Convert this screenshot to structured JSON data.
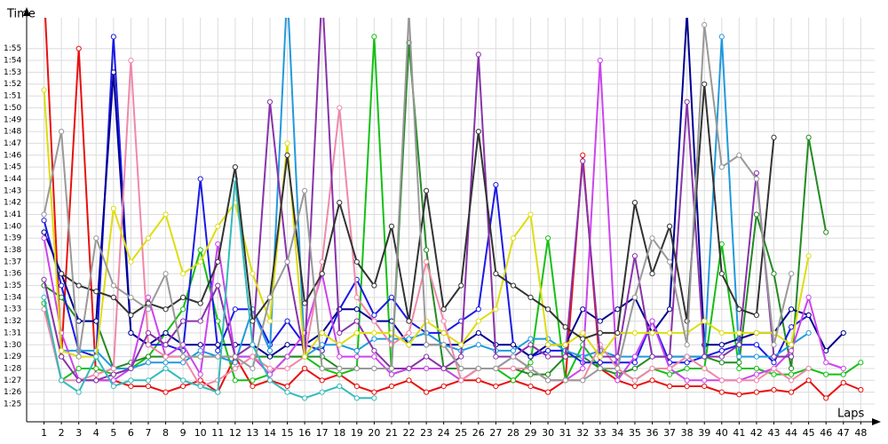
{
  "chart_data": {
    "type": "line",
    "xlabel": "Laps",
    "ylabel": "Time",
    "x": [
      1,
      2,
      3,
      4,
      5,
      6,
      7,
      8,
      9,
      10,
      11,
      12,
      13,
      14,
      15,
      16,
      17,
      18,
      19,
      20,
      21,
      22,
      23,
      24,
      25,
      26,
      27,
      28,
      29,
      30,
      31,
      32,
      33,
      34,
      35,
      36,
      37,
      38,
      39,
      40,
      41,
      42,
      43,
      44,
      45,
      46,
      47,
      48
    ],
    "xlim": [
      0,
      48.8
    ],
    "xticks": [
      1,
      2,
      3,
      4,
      5,
      6,
      7,
      8,
      9,
      10,
      11,
      12,
      13,
      14,
      15,
      16,
      17,
      18,
      19,
      20,
      21,
      22,
      23,
      24,
      25,
      26,
      27,
      28,
      29,
      30,
      31,
      32,
      33,
      34,
      35,
      36,
      37,
      38,
      39,
      40,
      41,
      42,
      43,
      44,
      45,
      46,
      47,
      48
    ],
    "ylim": [
      83.5,
      117.6
    ],
    "yticks": [
      {
        "value": 85,
        "label": "1:25"
      },
      {
        "value": 86,
        "label": "1:26"
      },
      {
        "value": 87,
        "label": "1:27"
      },
      {
        "value": 88,
        "label": "1:28"
      },
      {
        "value": 89,
        "label": "1:29"
      },
      {
        "value": 90,
        "label": "1:30"
      },
      {
        "value": 91,
        "label": "1:31"
      },
      {
        "value": 92,
        "label": "1:32"
      },
      {
        "value": 93,
        "label": "1:33"
      },
      {
        "value": 94,
        "label": "1:34"
      },
      {
        "value": 95,
        "label": "1:35"
      },
      {
        "value": 96,
        "label": "1:36"
      },
      {
        "value": 97,
        "label": "1:37"
      },
      {
        "value": 98,
        "label": "1:38"
      },
      {
        "value": 99,
        "label": "1:39"
      },
      {
        "value": 100,
        "label": "1:40"
      },
      {
        "value": 101,
        "label": "1:41"
      },
      {
        "value": 102,
        "label": "1:42"
      },
      {
        "value": 103,
        "label": "1:43"
      },
      {
        "value": 104,
        "label": "1:44"
      },
      {
        "value": 105,
        "label": "1:45"
      },
      {
        "value": 106,
        "label": "1:46"
      },
      {
        "value": 107,
        "label": "1:47"
      },
      {
        "value": 108,
        "label": "1:48"
      },
      {
        "value": 109,
        "label": "1:49"
      },
      {
        "value": 110,
        "label": "1:50"
      },
      {
        "value": 111,
        "label": "1:51"
      },
      {
        "value": 112,
        "label": "1:52"
      },
      {
        "value": 113,
        "label": "1:53"
      },
      {
        "value": 114,
        "label": "1:54"
      },
      {
        "value": 115,
        "label": "1:55"
      }
    ],
    "grid": true,
    "series": [
      {
        "color": "#e81010",
        "values": [
          120,
          89,
          115,
          87,
          87,
          86.5,
          86.5,
          86,
          86.5,
          87,
          86,
          89,
          86.5,
          87,
          86.5,
          88,
          87,
          87.5,
          86.5,
          86,
          86.5,
          87,
          86,
          86.5,
          87,
          87,
          86.5,
          87,
          86.5,
          86,
          87,
          106,
          88,
          87,
          86.5,
          87,
          86.5,
          86.5,
          86.5,
          86,
          85.8,
          86,
          86.2,
          86,
          87,
          85.5,
          86.8,
          86.2
        ]
      },
      {
        "color": "#14c014",
        "values": [
          93.5,
          87,
          88,
          88,
          87.5,
          88,
          89,
          91,
          93,
          98,
          92,
          87,
          87,
          87.5,
          89,
          89,
          88,
          87.5,
          88,
          116,
          87.5,
          88,
          88,
          88,
          87,
          88,
          88,
          87,
          88.5,
          99,
          87,
          90,
          88,
          88,
          87,
          88,
          87.5,
          88,
          88,
          98.5,
          88,
          88,
          87.5,
          87.5,
          88,
          87.5,
          87.5,
          88.5
        ]
      },
      {
        "color": "#228b22",
        "values": [
          95,
          94,
          92,
          92,
          88,
          88.5,
          89,
          89,
          89,
          89,
          89,
          89,
          89,
          89,
          89,
          89,
          89,
          88,
          88,
          88,
          88,
          115.5,
          98,
          88,
          88,
          88,
          88,
          88,
          87.5,
          87.5,
          89,
          89,
          88,
          87.5,
          88,
          89,
          89,
          89,
          89,
          88.5,
          88.5,
          101,
          96,
          88,
          107.5,
          99.5,
          null,
          null
        ]
      },
      {
        "color": "#1a1ae6",
        "values": [
          100.5,
          95,
          89.5,
          89,
          116,
          91,
          90,
          90,
          89.5,
          104,
          89.5,
          93,
          93,
          90,
          92,
          90,
          89.5,
          93,
          95.5,
          92.5,
          94,
          92,
          91,
          91,
          92,
          93,
          103.5,
          90,
          89,
          89.5,
          89.5,
          88.5,
          88.5,
          88.5,
          88.5,
          92,
          88.5,
          88.5,
          89,
          89.5,
          90,
          90,
          88.5,
          91.5,
          92.5,
          null,
          null,
          null
        ]
      },
      {
        "color": "#000090",
        "values": [
          99.5,
          96,
          92,
          92,
          113,
          91,
          90,
          91,
          90,
          90,
          90,
          90,
          90,
          89,
          90,
          90,
          91,
          93,
          93,
          92,
          92,
          90,
          90,
          90,
          90,
          91,
          90,
          90,
          89,
          90,
          90,
          93,
          92,
          93,
          94,
          91,
          93,
          118,
          90,
          90,
          90.5,
          91,
          91,
          93,
          92.5,
          89.5,
          91,
          null
        ]
      },
      {
        "color": "#2299dd",
        "values": [
          null,
          89.5,
          89.5,
          89.5,
          88,
          88,
          88.5,
          88.5,
          88.5,
          89.5,
          89,
          88.5,
          93,
          89.5,
          120,
          89,
          90,
          90,
          89.5,
          90.5,
          90.5,
          90.5,
          91,
          90,
          89.5,
          90,
          89.5,
          89.5,
          90.5,
          90.5,
          89.5,
          89,
          89.5,
          89,
          89,
          89,
          89,
          89,
          89,
          116,
          89,
          89,
          89,
          90,
          91,
          null,
          null,
          null
        ]
      },
      {
        "color": "#cc44ee",
        "values": [
          99,
          91,
          87,
          87,
          87,
          88,
          94,
          89,
          90,
          87.5,
          98.5,
          89,
          89,
          87.5,
          89,
          91,
          96,
          89,
          89,
          89,
          87.5,
          88,
          88,
          88,
          87,
          88,
          88,
          89,
          88,
          87,
          87,
          88,
          114,
          87,
          89,
          92,
          88,
          87,
          87,
          87,
          87,
          87.5,
          88,
          89.5,
          94,
          88.5,
          88,
          null
        ]
      },
      {
        "color": "#f088aa",
        "values": [
          93,
          87,
          87,
          87.5,
          88,
          114,
          90,
          89,
          89,
          86.5,
          87,
          88,
          89,
          88,
          88,
          89,
          97,
          110,
          94,
          92,
          90,
          91,
          97,
          92,
          87,
          88,
          88,
          88,
          88,
          87,
          87,
          87,
          90,
          88,
          87,
          88,
          88,
          89,
          88,
          87,
          87,
          87,
          88,
          87,
          88,
          null,
          null,
          null
        ]
      },
      {
        "color": "#8833aa",
        "values": [
          95.5,
          89,
          87,
          87,
          87.5,
          88,
          91,
          90,
          92,
          92,
          95,
          89,
          90,
          110.5,
          97,
          89,
          120,
          91,
          92,
          89.5,
          88,
          88,
          89,
          88,
          89,
          114.5,
          89,
          89,
          90,
          89,
          89,
          105.5,
          89,
          89,
          97.5,
          89,
          89,
          110.5,
          89,
          89,
          90,
          104.5,
          89,
          89,
          null,
          null,
          null,
          null
        ]
      },
      {
        "color": "#dddd11",
        "values": [
          111.5,
          89.5,
          89,
          89,
          101.5,
          97,
          99,
          101,
          96,
          97,
          100,
          102,
          96,
          92,
          107,
          89,
          91,
          90,
          91,
          91,
          91,
          90,
          92,
          91,
          90,
          92,
          93,
          99,
          101,
          90,
          90,
          91,
          89,
          91,
          91,
          91,
          91,
          91,
          92,
          91,
          91,
          91,
          91,
          90,
          97.5,
          null,
          null,
          null
        ]
      },
      {
        "color": "#33bbbb",
        "values": [
          94,
          87,
          86,
          89,
          86.5,
          87,
          87,
          88,
          87,
          86.5,
          86,
          104,
          90,
          87,
          86,
          85.5,
          86,
          86.5,
          85.5,
          85.5,
          null,
          null,
          null,
          null,
          null,
          null,
          null,
          null,
          null,
          null,
          null,
          null,
          null,
          null,
          null,
          null,
          null,
          null,
          null,
          null,
          null,
          null,
          null,
          null,
          null,
          null,
          null,
          null
        ]
      },
      {
        "color": "#333333",
        "values": [
          null,
          96,
          95,
          94.5,
          94,
          92.5,
          93.5,
          93,
          94,
          93.5,
          97,
          105,
          92,
          94,
          106,
          93.5,
          96,
          102,
          97,
          95,
          100,
          92,
          103,
          93,
          95,
          108,
          96,
          95,
          94,
          93,
          91.5,
          90.5,
          91,
          91,
          102,
          96,
          100,
          92,
          112,
          96,
          93,
          92.5,
          107.5,
          null,
          null,
          null,
          null,
          null
        ]
      },
      {
        "color": "#999999",
        "values": [
          101,
          108,
          89,
          99,
          95,
          94,
          93,
          96,
          89,
          89,
          89,
          89,
          88,
          94,
          97,
          103,
          88,
          88,
          88,
          88,
          88,
          118,
          90,
          90,
          88,
          88,
          88,
          89,
          88,
          87,
          87,
          87,
          88,
          88,
          94,
          99,
          97,
          90,
          117,
          105,
          106,
          104,
          90,
          96,
          null,
          null,
          null,
          null
        ]
      }
    ]
  }
}
